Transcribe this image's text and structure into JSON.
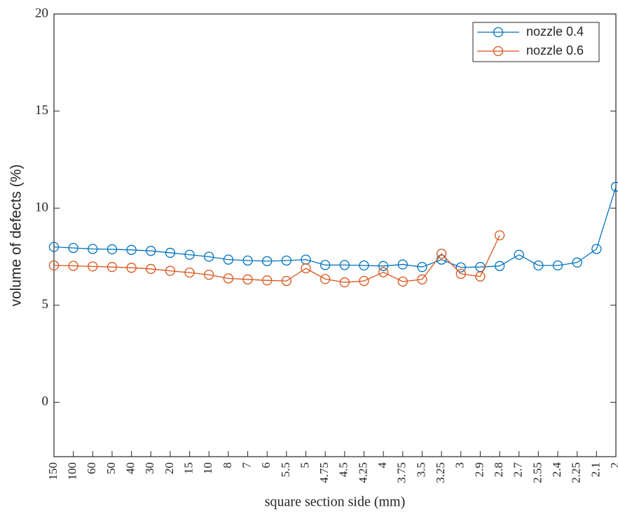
{
  "chart_data": {
    "type": "line",
    "xlabel": "square section side (mm)",
    "ylabel": "volume of defects (%)",
    "categories": [
      "150",
      "100",
      "60",
      "50",
      "40",
      "30",
      "20",
      "15",
      "10",
      "8",
      "7",
      "6",
      "5.5",
      "5",
      "4.75",
      "4.5",
      "4.25",
      "4",
      "3.75",
      "3.5",
      "3.25",
      "3",
      "2.9",
      "2.8",
      "2.7",
      "2.55",
      "2.4",
      "2.25",
      "2.1",
      "2"
    ],
    "series": [
      {
        "name": "nozzle 0.4",
        "color": "#0072bd",
        "values": [
          8.0,
          7.95,
          7.9,
          7.88,
          7.85,
          7.8,
          7.7,
          7.6,
          7.5,
          7.35,
          7.3,
          7.27,
          7.3,
          7.35,
          7.07,
          7.07,
          7.05,
          7.02,
          7.1,
          6.97,
          7.35,
          6.95,
          6.97,
          7.02,
          7.6,
          7.05,
          7.05,
          7.2,
          7.9,
          11.1
        ]
      },
      {
        "name": "nozzle 0.6",
        "color": "#d95319",
        "values": [
          7.05,
          7.03,
          7.0,
          6.97,
          6.93,
          6.87,
          6.77,
          6.68,
          6.57,
          6.38,
          6.33,
          6.28,
          6.25,
          6.9,
          6.35,
          6.18,
          6.25,
          6.7,
          6.22,
          6.33,
          7.65,
          6.62,
          6.48,
          8.6,
          null,
          null,
          null,
          null,
          null,
          null
        ]
      }
    ],
    "ylim": [
      -2.8,
      20
    ],
    "yticks": [
      0,
      5,
      10,
      15,
      20
    ],
    "legend": "upper right"
  }
}
